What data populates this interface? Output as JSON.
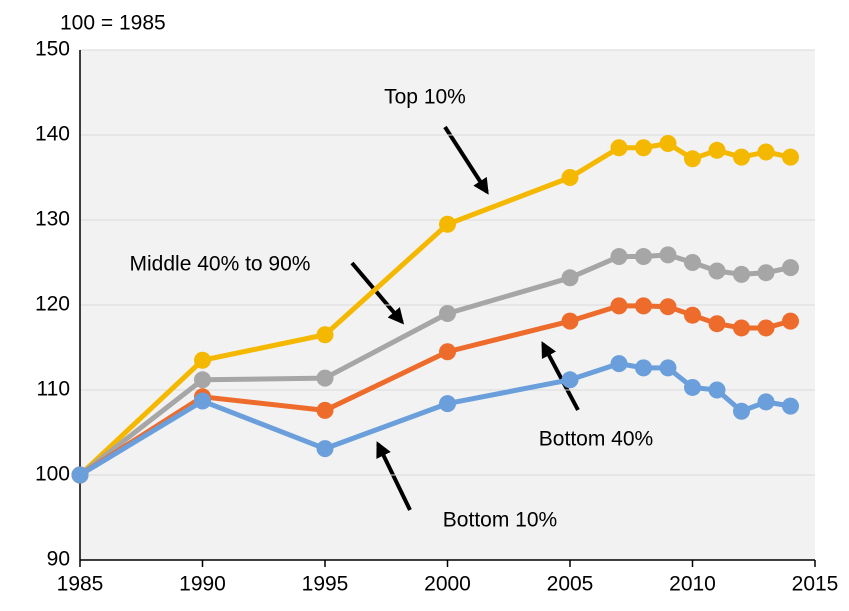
{
  "chart_data": {
    "type": "line",
    "ylabel": "100 = 1985",
    "x": [
      1985,
      1990,
      1995,
      2000,
      2005,
      2007,
      2008,
      2009,
      2010,
      2011,
      2012,
      2013,
      2014
    ],
    "series": [
      {
        "name": "Top 10%",
        "color": "#f5b800",
        "values": [
          100,
          113.5,
          116.5,
          129.5,
          135,
          138.5,
          138.5,
          139,
          137.2,
          138.2,
          137.4,
          138,
          137.4
        ]
      },
      {
        "name": "Middle 40% to 90%",
        "color": "#a6a6a6",
        "values": [
          100,
          111.2,
          111.4,
          119,
          123.2,
          125.7,
          125.7,
          125.9,
          125,
          124,
          123.6,
          123.8,
          124.4
        ]
      },
      {
        "name": "Bottom 40%",
        "color": "#ed6b2b",
        "values": [
          100,
          109.2,
          107.6,
          114.5,
          118.1,
          119.9,
          119.9,
          119.8,
          118.8,
          117.8,
          117.3,
          117.3,
          118.1
        ]
      },
      {
        "name": "Bottom 10%",
        "color": "#6a9fdb",
        "values": [
          100,
          108.7,
          103.1,
          108.4,
          111.2,
          113.1,
          112.6,
          112.6,
          110.3,
          110,
          107.5,
          108.6,
          108.1
        ]
      }
    ],
    "xlim": [
      1985,
      2015
    ],
    "xticks": [
      1985,
      1990,
      1995,
      2000,
      2005,
      2010,
      2015
    ],
    "ylim": [
      90,
      150
    ],
    "yticks": [
      90,
      100,
      110,
      120,
      130,
      140,
      150
    ],
    "grid": true
  }
}
